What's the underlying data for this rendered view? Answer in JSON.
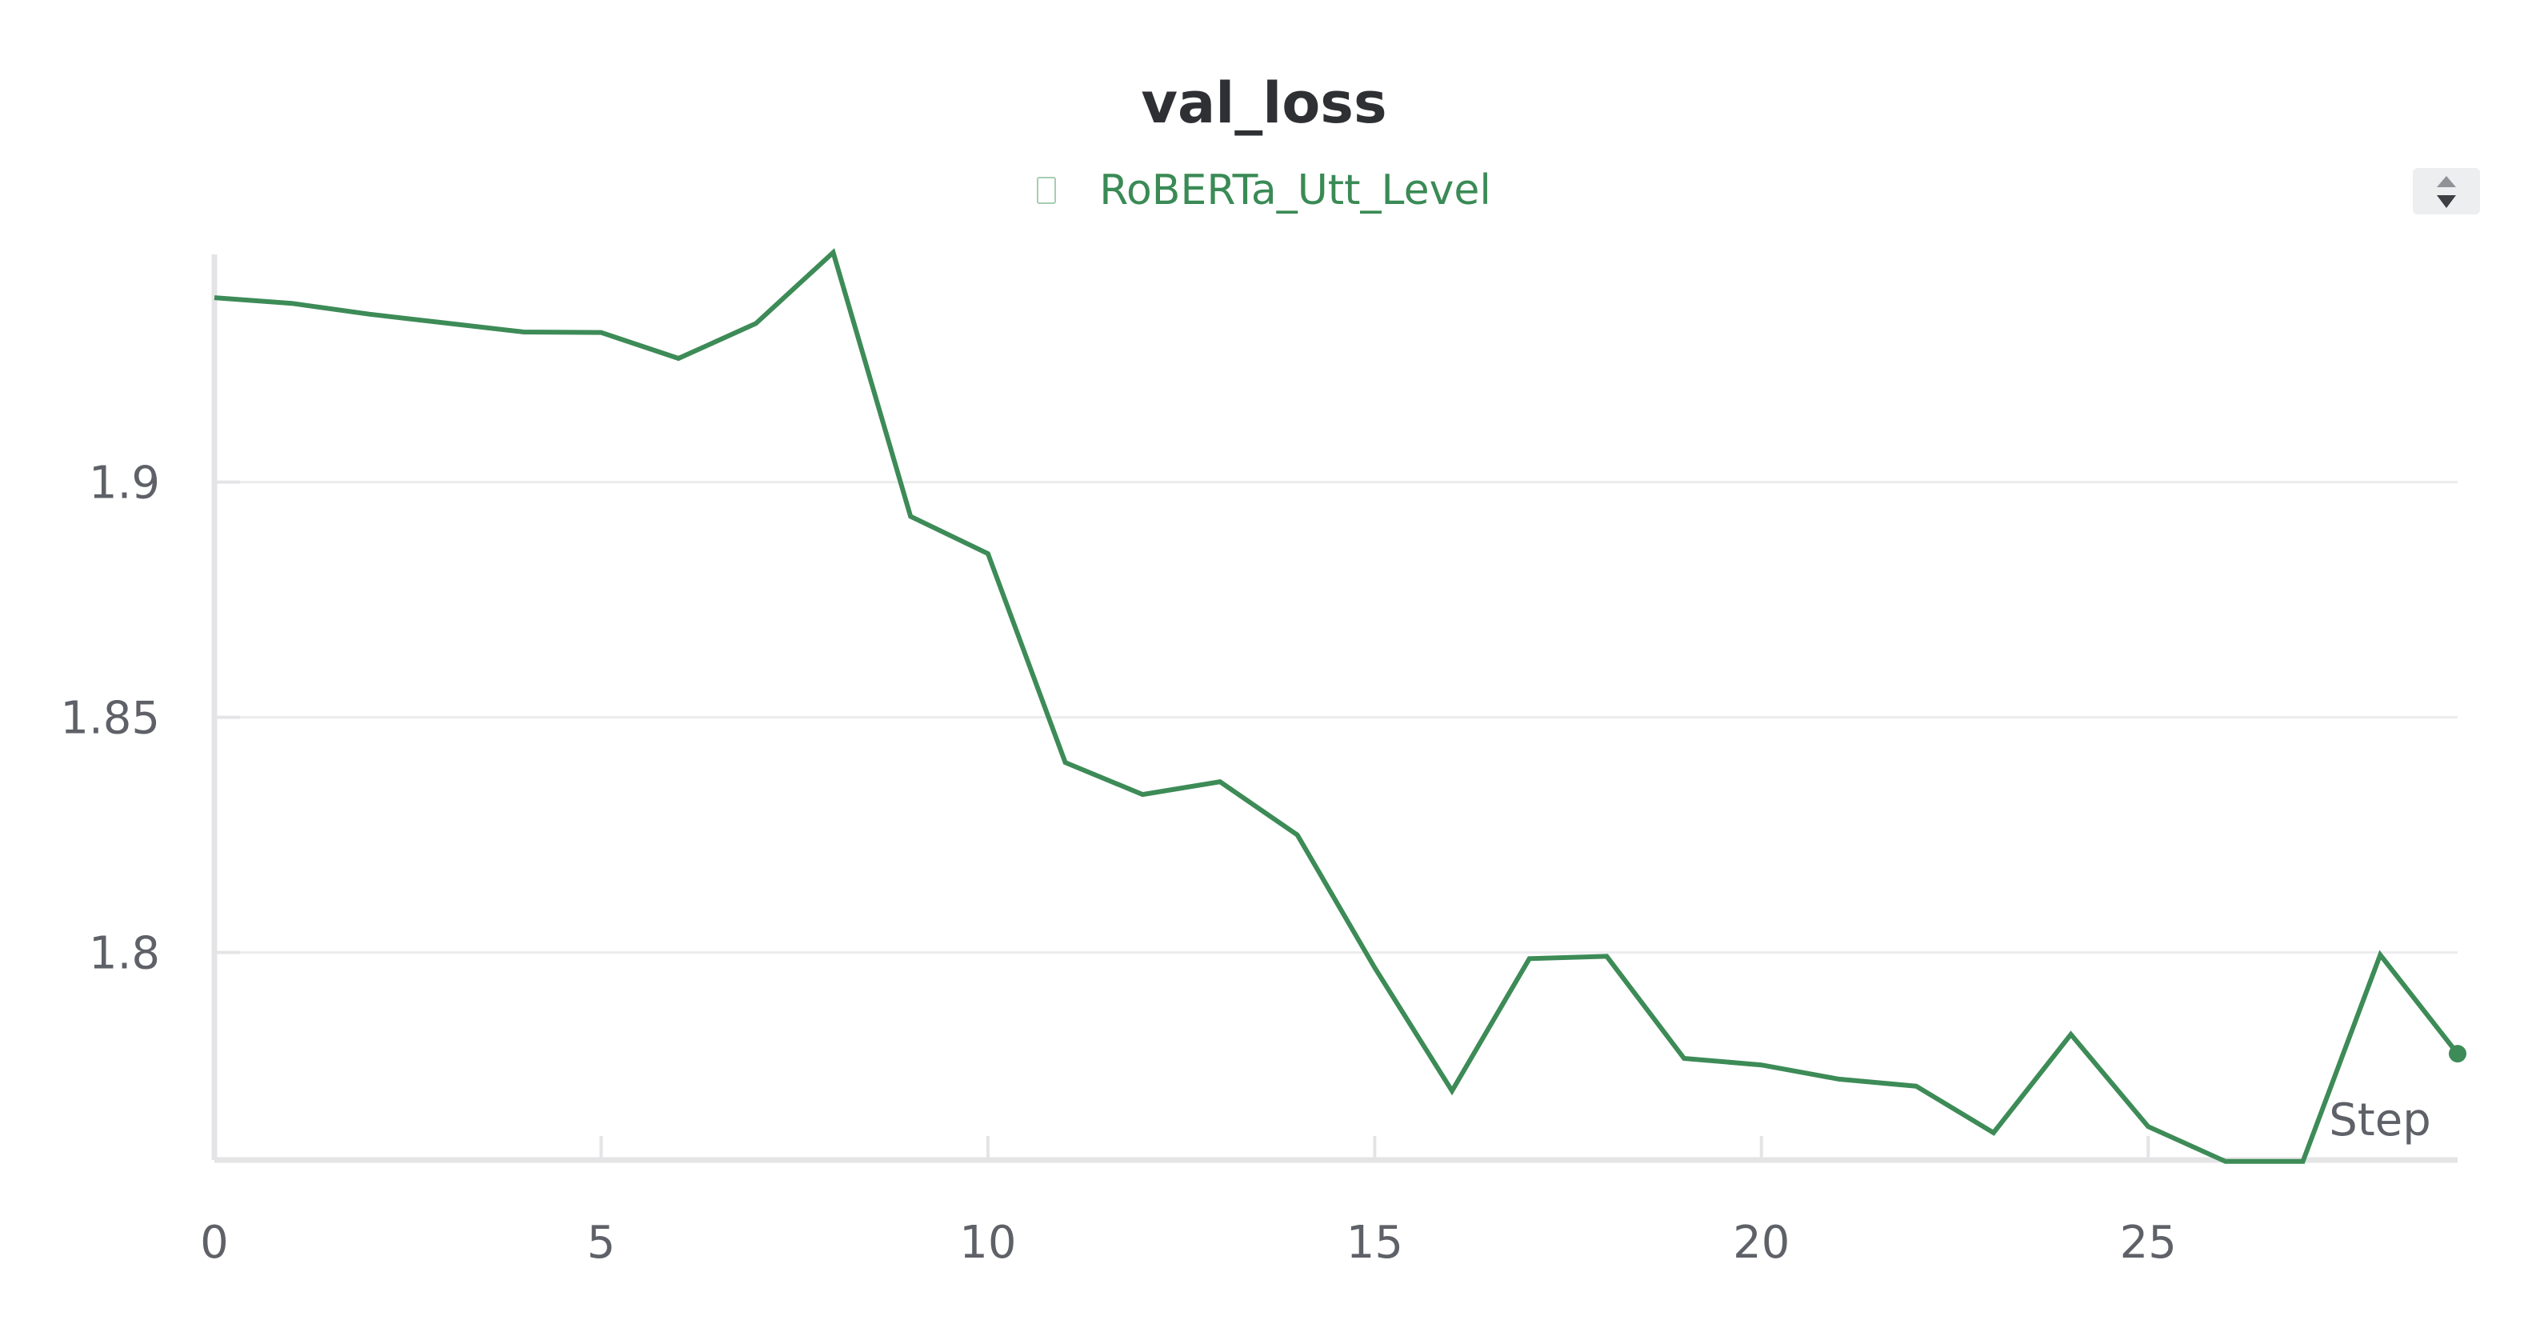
{
  "chart_data": {
    "type": "line",
    "title": "val_loss",
    "xlabel": "Step",
    "ylabel": "",
    "x": [
      0,
      1,
      2,
      3,
      4,
      5,
      6,
      7,
      8,
      9,
      10,
      11,
      12,
      13,
      14,
      15,
      16,
      17,
      18,
      19,
      20,
      21,
      22,
      23,
      24,
      25,
      26,
      27,
      28,
      29
    ],
    "series": [
      {
        "name": "RoBERTa_Utt_Level",
        "color": "#3d8b57",
        "values": [
          1.9392,
          1.938,
          1.9357,
          1.9338,
          1.9319,
          1.9318,
          1.9263,
          1.9337,
          1.9488,
          1.8927,
          1.8848,
          1.8404,
          1.8336,
          1.8363,
          1.825,
          1.7968,
          1.7706,
          1.7987,
          1.7992,
          1.7775,
          1.7761,
          1.7731,
          1.7716,
          1.7617,
          1.7826,
          1.763,
          1.7556,
          1.7556,
          1.7995,
          1.7785
        ]
      }
    ],
    "xlim": [
      0,
      29
    ],
    "ylim": [
      1.7559,
      1.9484
    ],
    "x_ticks": [
      0,
      5,
      10,
      15,
      20,
      25
    ],
    "y_ticks": [
      1.8,
      1.85,
      1.9
    ],
    "x_tick_labels": [
      "0",
      "5",
      "10",
      "15",
      "20",
      "25"
    ],
    "y_tick_labels": [
      "1.8",
      "1.85",
      "1.9"
    ],
    "grid": true,
    "legend_position": "top-center"
  },
  "legend": {
    "series_label": "RoBERTa_Utt_Level"
  },
  "controls": {
    "sort_icon": "sort-up-down-icon"
  }
}
